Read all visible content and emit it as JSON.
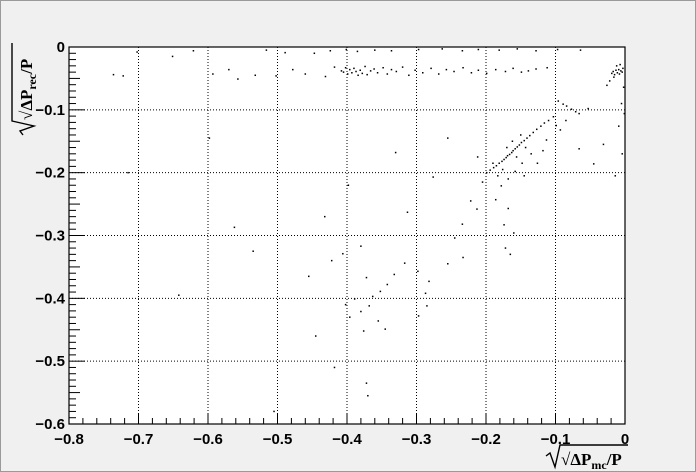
{
  "chart_data": {
    "type": "scatter",
    "title": "",
    "xlabel": {
      "main": "√ΔP",
      "sub": "mc",
      "suffix": "/P"
    },
    "ylabel": {
      "main": "√ΔP",
      "sub": "rec",
      "suffix": "/P"
    },
    "xlim": [
      -0.8,
      0
    ],
    "ylim": [
      -0.6,
      0
    ],
    "grid": true,
    "x_ticks": [
      {
        "value": -0.8,
        "label": "−0.8"
      },
      {
        "value": -0.7,
        "label": "−0.7"
      },
      {
        "value": -0.6,
        "label": "−0.6"
      },
      {
        "value": -0.5,
        "label": "−0.5"
      },
      {
        "value": -0.4,
        "label": "−0.4"
      },
      {
        "value": -0.3,
        "label": "−0.3"
      },
      {
        "value": -0.2,
        "label": "−0.2"
      },
      {
        "value": -0.1,
        "label": "−0.1"
      },
      {
        "value": 0,
        "label": "0"
      }
    ],
    "y_ticks": [
      {
        "value": 0,
        "label": "0"
      },
      {
        "value": -0.1,
        "label": "−0.1"
      },
      {
        "value": -0.2,
        "label": "−0.2"
      },
      {
        "value": -0.3,
        "label": "−0.3"
      },
      {
        "value": -0.4,
        "label": "−0.4"
      },
      {
        "value": -0.5,
        "label": "−0.5"
      },
      {
        "value": -0.6,
        "label": "−0.6"
      }
    ],
    "points": [
      [
        -0.736,
        -0.044
      ],
      [
        -0.722,
        -0.046
      ],
      [
        -0.702,
        -0.008
      ],
      [
        -0.651,
        -0.015
      ],
      [
        -0.621,
        -0.006
      ],
      [
        -0.593,
        -0.043
      ],
      [
        -0.57,
        -0.036
      ],
      [
        -0.557,
        -0.051
      ],
      [
        -0.532,
        -0.045
      ],
      [
        -0.516,
        -0.005
      ],
      [
        -0.502,
        -0.046
      ],
      [
        -0.489,
        -0.009
      ],
      [
        -0.478,
        -0.036
      ],
      [
        -0.46,
        -0.043
      ],
      [
        -0.447,
        -0.01
      ],
      [
        -0.431,
        -0.047
      ],
      [
        -0.418,
        -0.032
      ],
      [
        -0.408,
        -0.038
      ],
      [
        -0.405,
        -0.04
      ],
      [
        -0.402,
        -0.033
      ],
      [
        -0.399,
        -0.043
      ],
      [
        -0.396,
        -0.036
      ],
      [
        -0.393,
        -0.041
      ],
      [
        -0.39,
        -0.034
      ],
      [
        -0.387,
        -0.039
      ],
      [
        -0.384,
        -0.045
      ],
      [
        -0.381,
        -0.037
      ],
      [
        -0.378,
        -0.042
      ],
      [
        -0.374,
        -0.031
      ],
      [
        -0.371,
        -0.044
      ],
      [
        -0.366,
        -0.038
      ],
      [
        -0.361,
        -0.035
      ],
      [
        -0.356,
        -0.041
      ],
      [
        -0.348,
        -0.033
      ],
      [
        -0.342,
        -0.043
      ],
      [
        -0.336,
        -0.036
      ],
      [
        -0.329,
        -0.039
      ],
      [
        -0.32,
        -0.032
      ],
      [
        -0.311,
        -0.045
      ],
      [
        -0.302,
        -0.037
      ],
      [
        -0.291,
        -0.041
      ],
      [
        -0.279,
        -0.034
      ],
      [
        -0.268,
        -0.043
      ],
      [
        -0.257,
        -0.036
      ],
      [
        -0.246,
        -0.039
      ],
      [
        -0.233,
        -0.033
      ],
      [
        -0.221,
        -0.041
      ],
      [
        -0.211,
        -0.037
      ],
      [
        -0.199,
        -0.042
      ],
      [
        -0.186,
        -0.036
      ],
      [
        -0.172,
        -0.039
      ],
      [
        -0.161,
        -0.034
      ],
      [
        -0.149,
        -0.04
      ],
      [
        -0.139,
        -0.038
      ],
      [
        -0.128,
        -0.035
      ],
      [
        -0.112,
        -0.033
      ],
      [
        -0.424,
        -0.006
      ],
      [
        -0.401,
        -0.004
      ],
      [
        -0.385,
        -0.007
      ],
      [
        -0.36,
        -0.005
      ],
      [
        -0.336,
        -0.006
      ],
      [
        -0.297,
        -0.004
      ],
      [
        -0.263,
        -0.003
      ],
      [
        -0.234,
        -0.006
      ],
      [
        -0.211,
        -0.004
      ],
      [
        -0.181,
        -0.005
      ],
      [
        -0.155,
        -0.003
      ],
      [
        -0.128,
        -0.006
      ],
      [
        -0.097,
        -0.004
      ],
      [
        -0.064,
        -0.005
      ],
      [
        -0.019,
        -0.042
      ],
      [
        -0.017,
        -0.039
      ],
      [
        -0.015,
        -0.044
      ],
      [
        -0.013,
        -0.037
      ],
      [
        -0.011,
        -0.041
      ],
      [
        -0.009,
        -0.036
      ],
      [
        -0.008,
        -0.043
      ],
      [
        -0.006,
        -0.038
      ],
      [
        -0.004,
        -0.04
      ],
      [
        -0.003,
        -0.034
      ],
      [
        -0.016,
        -0.048
      ],
      [
        -0.012,
        -0.03
      ],
      [
        -0.022,
        -0.054
      ],
      [
        -0.026,
        -0.061
      ],
      [
        -0.007,
        -0.028
      ],
      [
        -0.005,
        -0.09
      ],
      [
        -0.096,
        -0.086
      ],
      [
        -0.089,
        -0.091
      ],
      [
        -0.084,
        -0.094
      ],
      [
        -0.077,
        -0.099
      ],
      [
        -0.071,
        -0.103
      ],
      [
        -0.066,
        -0.106
      ],
      [
        -0.103,
        -0.111
      ],
      [
        -0.11,
        -0.117
      ],
      [
        -0.116,
        -0.121
      ],
      [
        -0.121,
        -0.126
      ],
      [
        -0.127,
        -0.131
      ],
      [
        -0.132,
        -0.136
      ],
      [
        -0.137,
        -0.141
      ],
      [
        -0.141,
        -0.145
      ],
      [
        -0.145,
        -0.149
      ],
      [
        -0.149,
        -0.152
      ],
      [
        -0.152,
        -0.156
      ],
      [
        -0.155,
        -0.159
      ],
      [
        -0.158,
        -0.162
      ],
      [
        -0.161,
        -0.165
      ],
      [
        -0.163,
        -0.168
      ],
      [
        -0.166,
        -0.171
      ],
      [
        -0.169,
        -0.173
      ],
      [
        -0.171,
        -0.176
      ],
      [
        -0.174,
        -0.179
      ],
      [
        -0.177,
        -0.182
      ],
      [
        -0.181,
        -0.185
      ],
      [
        -0.185,
        -0.189
      ],
      [
        -0.189,
        -0.192
      ],
      [
        -0.194,
        -0.196
      ],
      [
        -0.199,
        -0.2
      ],
      [
        -0.15,
        -0.14
      ],
      [
        -0.143,
        -0.16
      ],
      [
        -0.156,
        -0.175
      ],
      [
        -0.148,
        -0.185
      ],
      [
        -0.162,
        -0.15
      ],
      [
        -0.135,
        -0.17
      ],
      [
        -0.17,
        -0.16
      ],
      [
        -0.176,
        -0.195
      ],
      [
        -0.183,
        -0.205
      ],
      [
        -0.19,
        -0.185
      ],
      [
        -0.205,
        -0.215
      ],
      [
        -0.212,
        -0.175
      ],
      [
        -0.168,
        -0.21
      ],
      [
        -0.158,
        -0.198
      ],
      [
        -0.145,
        -0.205
      ],
      [
        -0.126,
        -0.185
      ],
      [
        -0.118,
        -0.165
      ],
      [
        -0.113,
        -0.148
      ],
      [
        -0.099,
        -0.125
      ],
      [
        -0.093,
        -0.132
      ],
      [
        -0.085,
        -0.117
      ],
      [
        -0.178,
        -0.221
      ],
      [
        -0.186,
        -0.243
      ],
      [
        -0.168,
        -0.257
      ],
      [
        -0.174,
        -0.283
      ],
      [
        -0.16,
        -0.296
      ],
      [
        -0.172,
        -0.32
      ],
      [
        -0.165,
        -0.33
      ],
      [
        -0.213,
        -0.258
      ],
      [
        -0.222,
        -0.245
      ],
      [
        -0.234,
        -0.282
      ],
      [
        -0.245,
        -0.304
      ],
      [
        -0.233,
        -0.335
      ],
      [
        -0.255,
        -0.345
      ],
      [
        -0.282,
        -0.373
      ],
      [
        -0.298,
        -0.357
      ],
      [
        -0.317,
        -0.344
      ],
      [
        -0.332,
        -0.362
      ],
      [
        -0.342,
        -0.378
      ],
      [
        -0.352,
        -0.389
      ],
      [
        -0.363,
        -0.397
      ],
      [
        -0.372,
        -0.367
      ],
      [
        -0.368,
        -0.412
      ],
      [
        -0.38,
        -0.421
      ],
      [
        -0.389,
        -0.401
      ],
      [
        -0.396,
        -0.43
      ],
      [
        -0.402,
        -0.41
      ],
      [
        -0.355,
        -0.436
      ],
      [
        -0.345,
        -0.449
      ],
      [
        -0.376,
        -0.452
      ],
      [
        -0.372,
        -0.535
      ],
      [
        -0.37,
        -0.555
      ],
      [
        -0.406,
        -0.329
      ],
      [
        -0.38,
        -0.317
      ],
      [
        -0.287,
        -0.392
      ],
      [
        -0.285,
        -0.412
      ],
      [
        -0.297,
        -0.428
      ],
      [
        -0.715,
        -0.2
      ],
      [
        -0.642,
        -0.395
      ],
      [
        -0.598,
        -0.145
      ],
      [
        -0.562,
        -0.287
      ],
      [
        -0.535,
        -0.325
      ],
      [
        -0.505,
        -0.58
      ],
      [
        -0.455,
        -0.365
      ],
      [
        -0.445,
        -0.46
      ],
      [
        -0.432,
        -0.27
      ],
      [
        -0.422,
        -0.34
      ],
      [
        -0.418,
        -0.51
      ],
      [
        -0.398,
        -0.22
      ],
      [
        -0.33,
        -0.168
      ],
      [
        -0.313,
        -0.263
      ],
      [
        -0.276,
        -0.207
      ],
      [
        -0.255,
        -0.145
      ],
      [
        -0.053,
        -0.098
      ],
      [
        -0.031,
        -0.155
      ],
      [
        -0.014,
        -0.205
      ],
      [
        -0.009,
        -0.126
      ],
      [
        -0.004,
        -0.17
      ],
      [
        -0.066,
        -0.162
      ],
      [
        -0.045,
        -0.186
      ],
      [
        -0.002,
        -0.064
      ],
      [
        -0.001,
        -0.106
      ]
    ]
  }
}
